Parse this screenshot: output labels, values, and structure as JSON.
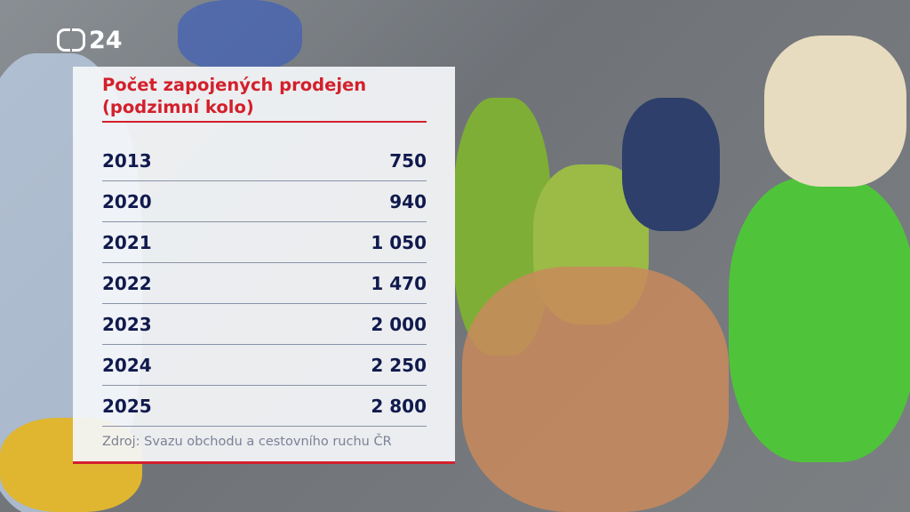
{
  "logo": {
    "text": "24"
  },
  "chart_data": {
    "type": "table",
    "title": "Počet zapojených prodejen (podzimní kolo)",
    "title_lines": [
      "Počet zapojených prodejen",
      "(podzimní kolo)"
    ],
    "rows": [
      {
        "year": "2013",
        "value": "750"
      },
      {
        "year": "2020",
        "value": "940"
      },
      {
        "year": "2021",
        "value": "1 050"
      },
      {
        "year": "2022",
        "value": "1 470"
      },
      {
        "year": "2023",
        "value": "2 000"
      },
      {
        "year": "2024",
        "value": "2 250"
      },
      {
        "year": "2025",
        "value": "2 800"
      }
    ],
    "source": "Zdroj: Svazu obchodu a cestovního ruchu ČR"
  },
  "colors": {
    "title": "#d3202c",
    "text": "#101a4d",
    "source": "#7c8196"
  }
}
